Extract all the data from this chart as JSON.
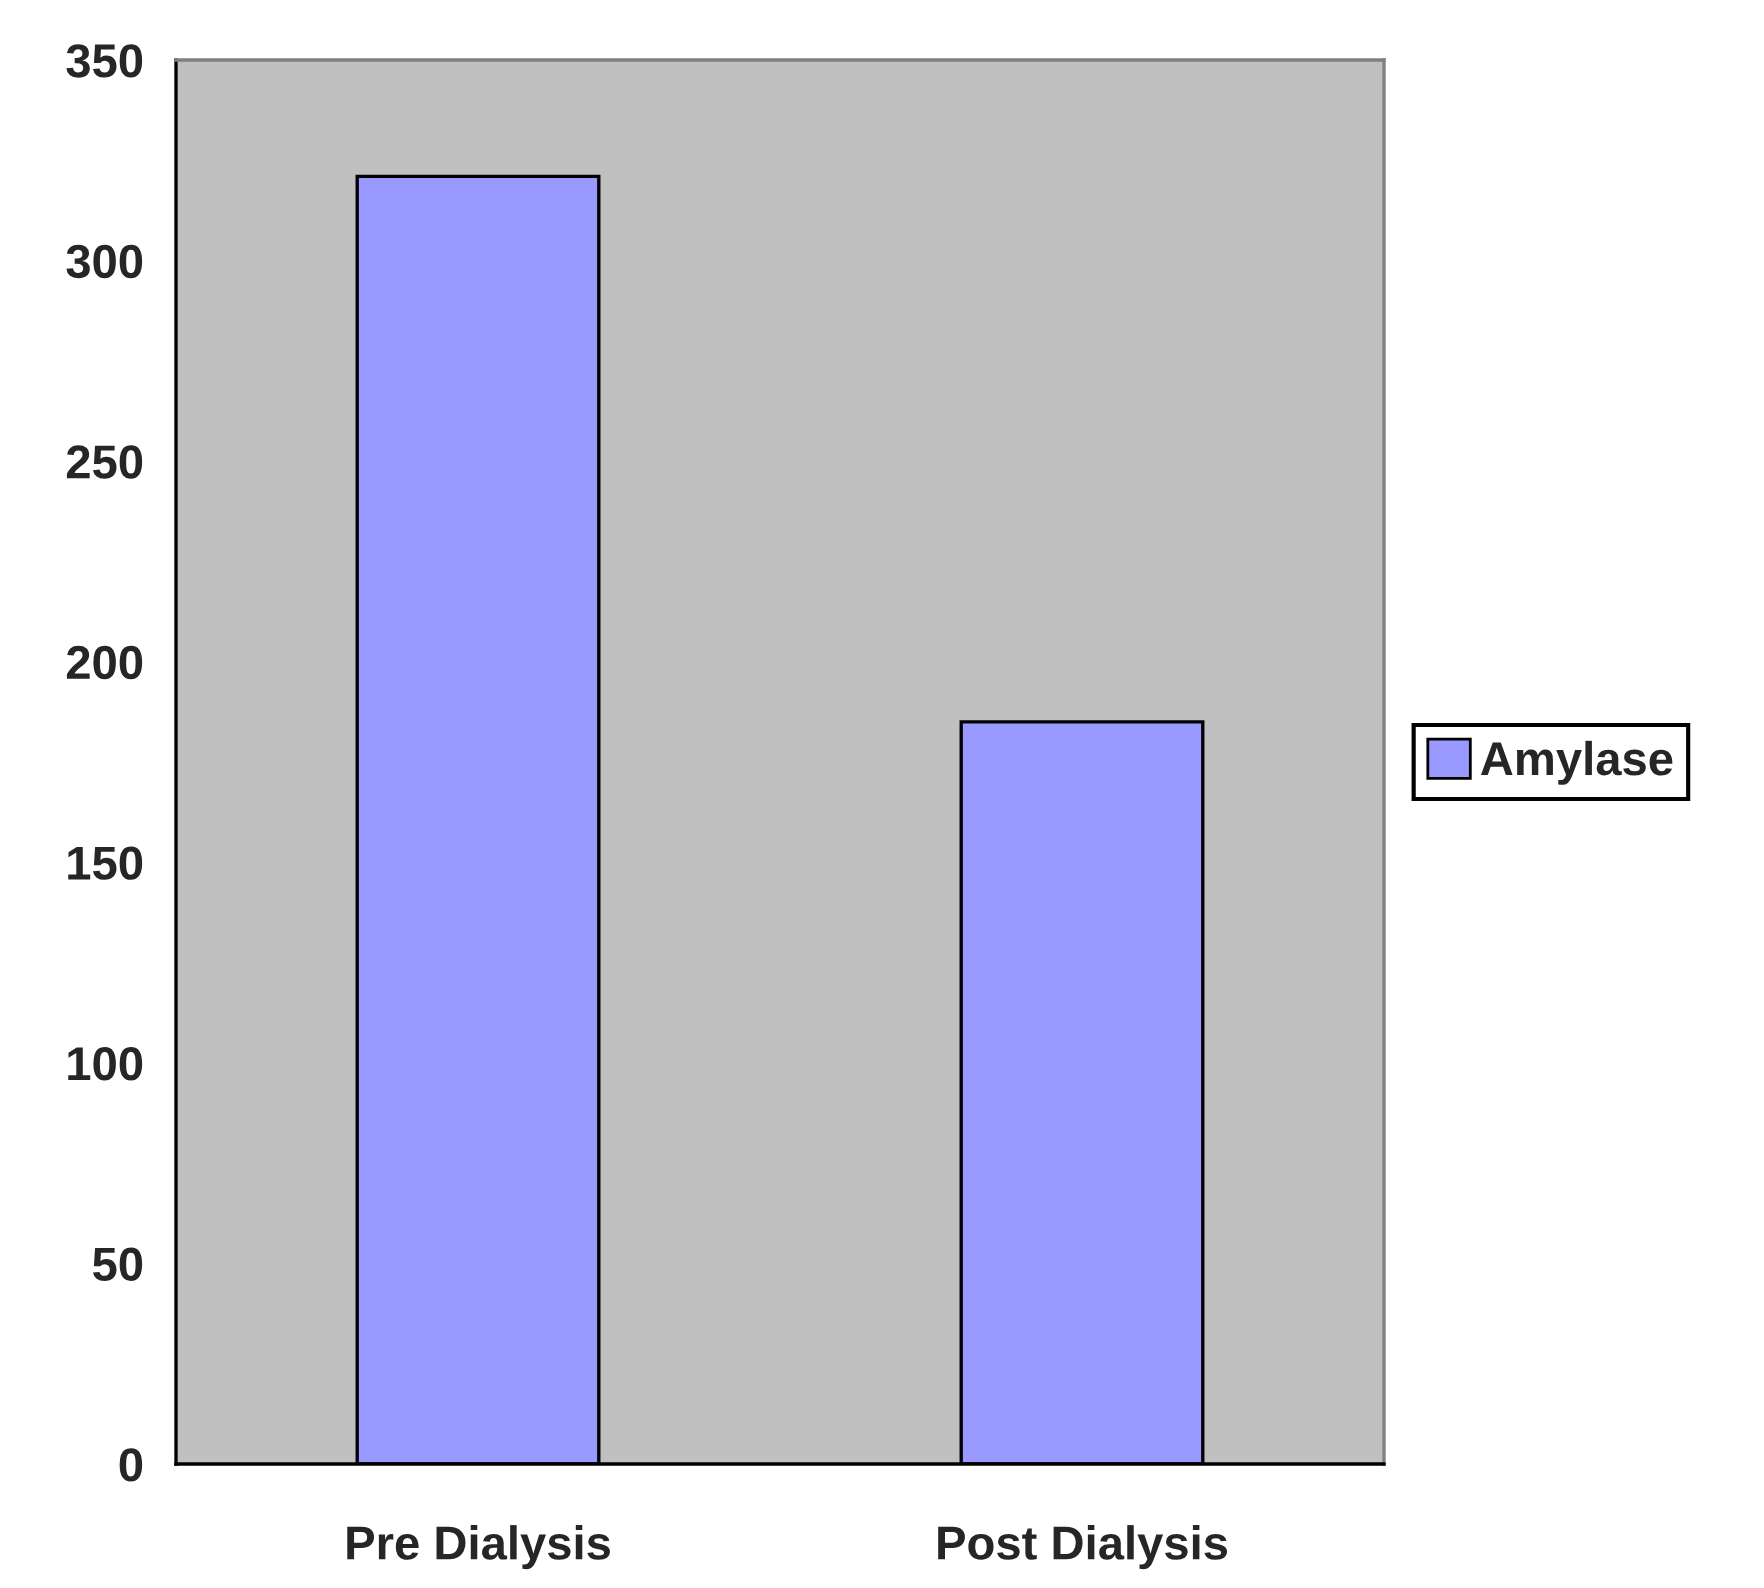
{
  "chart_data": {
    "type": "bar",
    "categories": [
      "Pre Dialysis",
      "Post Dialysis"
    ],
    "series": [
      {
        "name": "Amylase",
        "color": "#9999ff",
        "values": [
          321,
          185
        ]
      }
    ],
    "ylim": [
      0,
      350
    ],
    "yticks": [
      0,
      50,
      100,
      150,
      200,
      250,
      300,
      350
    ],
    "grid": false,
    "legend": "right"
  }
}
